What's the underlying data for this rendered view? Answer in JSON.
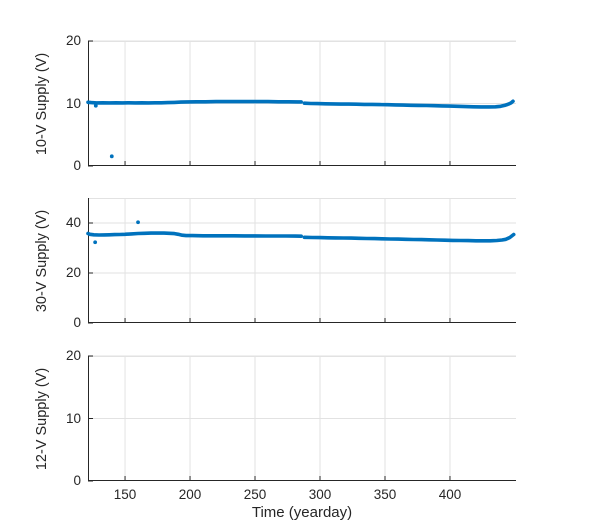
{
  "figure": {
    "xlabel": "Time (yearday)",
    "style": {
      "background": "#ffffff",
      "line_color": "#0072BD",
      "axis_color": "#262626",
      "grid_color": "#e2e2e2",
      "text_color": "#262626"
    }
  },
  "chart_data": [
    {
      "type": "scatter",
      "ylabel": "10-V Supply (V)",
      "xlabel": "",
      "xlim": [
        121.5,
        450.8
      ],
      "ylim": [
        0,
        20
      ],
      "xticks": [
        150,
        200,
        250,
        300,
        350,
        400
      ],
      "yticks": [
        0,
        10,
        20
      ],
      "xticklabels_visible": false,
      "grid": true,
      "legend": "none",
      "series": [
        {
          "name": "supply-10v-segment-1",
          "points": [
            [
              121.5,
              10.2
            ],
            [
              124,
              10.15
            ],
            [
              128,
              10.1
            ],
            [
              133,
              10.12
            ],
            [
              138,
              10.1
            ],
            [
              143,
              10.12
            ],
            [
              148,
              10.1
            ],
            [
              153,
              10.12
            ],
            [
              158,
              10.1
            ],
            [
              163,
              10.12
            ],
            [
              168,
              10.1
            ],
            [
              173,
              10.12
            ],
            [
              178,
              10.12
            ],
            [
              183,
              10.15
            ],
            [
              188,
              10.18
            ],
            [
              193,
              10.22
            ],
            [
              198,
              10.25
            ],
            [
              205,
              10.27
            ],
            [
              212,
              10.28
            ],
            [
              220,
              10.3
            ],
            [
              228,
              10.3
            ],
            [
              236,
              10.3
            ],
            [
              244,
              10.3
            ],
            [
              252,
              10.3
            ],
            [
              260,
              10.3
            ],
            [
              268,
              10.28
            ],
            [
              276,
              10.27
            ],
            [
              283,
              10.25
            ],
            [
              285.5,
              10.25
            ]
          ]
        },
        {
          "name": "supply-10v-segment-2",
          "points": [
            [
              288,
              10.05
            ],
            [
              293,
              10.0
            ],
            [
              298,
              9.98
            ],
            [
              304,
              9.95
            ],
            [
              310,
              9.93
            ],
            [
              316,
              9.9
            ],
            [
              322,
              9.9
            ],
            [
              328,
              9.88
            ],
            [
              334,
              9.85
            ],
            [
              340,
              9.85
            ],
            [
              346,
              9.82
            ],
            [
              352,
              9.8
            ],
            [
              358,
              9.78
            ],
            [
              364,
              9.75
            ],
            [
              370,
              9.72
            ],
            [
              376,
              9.7
            ],
            [
              382,
              9.68
            ],
            [
              388,
              9.65
            ],
            [
              394,
              9.62
            ],
            [
              400,
              9.58
            ],
            [
              406,
              9.55
            ],
            [
              412,
              9.5
            ],
            [
              418,
              9.47
            ],
            [
              424,
              9.45
            ],
            [
              430,
              9.45
            ],
            [
              435,
              9.47
            ],
            [
              439,
              9.55
            ],
            [
              442,
              9.7
            ],
            [
              445,
              9.9
            ],
            [
              447,
              10.1
            ],
            [
              448.5,
              10.35
            ]
          ]
        },
        {
          "name": "supply-10v-outliers",
          "marker_only": true,
          "points": [
            [
              127.5,
              9.65
            ],
            [
              139.8,
              1.55
            ]
          ]
        }
      ]
    },
    {
      "type": "scatter",
      "ylabel": "30-V Supply (V)",
      "xlabel": "",
      "xlim": [
        121.5,
        450.8
      ],
      "ylim": [
        0,
        50
      ],
      "xticks": [
        150,
        200,
        250,
        300,
        350,
        400
      ],
      "yticks": [
        0,
        20,
        40
      ],
      "xticklabels_visible": false,
      "grid": true,
      "legend": "none",
      "series": [
        {
          "name": "supply-30v-segment-1",
          "points": [
            [
              121.5,
              35.8
            ],
            [
              123,
              35.5
            ],
            [
              126,
              35.3
            ],
            [
              130,
              35.2
            ],
            [
              134,
              35.25
            ],
            [
              138,
              35.3
            ],
            [
              142,
              35.35
            ],
            [
              146,
              35.4
            ],
            [
              150,
              35.5
            ],
            [
              155,
              35.65
            ],
            [
              160,
              35.8
            ],
            [
              165,
              35.9
            ],
            [
              170,
              35.95
            ],
            [
              175,
              35.95
            ],
            [
              180,
              35.95
            ],
            [
              184,
              35.9
            ],
            [
              188,
              35.75
            ],
            [
              191,
              35.5
            ],
            [
              194,
              35.1
            ],
            [
              197,
              34.95
            ],
            [
              202,
              34.95
            ],
            [
              210,
              34.9
            ],
            [
              218,
              34.9
            ],
            [
              226,
              34.9
            ],
            [
              234,
              34.9
            ],
            [
              242,
              34.85
            ],
            [
              250,
              34.85
            ],
            [
              258,
              34.8
            ],
            [
              266,
              34.8
            ],
            [
              274,
              34.78
            ],
            [
              281,
              34.75
            ],
            [
              285.5,
              34.72
            ]
          ]
        },
        {
          "name": "supply-30v-segment-2",
          "points": [
            [
              288,
              34.3
            ],
            [
              294,
              34.2
            ],
            [
              300,
              34.15
            ],
            [
              306,
              34.1
            ],
            [
              312,
              34.05
            ],
            [
              318,
              34.0
            ],
            [
              324,
              33.95
            ],
            [
              330,
              33.88
            ],
            [
              336,
              33.8
            ],
            [
              342,
              33.75
            ],
            [
              348,
              33.68
            ],
            [
              354,
              33.6
            ],
            [
              360,
              33.55
            ],
            [
              366,
              33.48
            ],
            [
              372,
              33.4
            ],
            [
              378,
              33.35
            ],
            [
              384,
              33.28
            ],
            [
              390,
              33.2
            ],
            [
              396,
              33.12
            ],
            [
              402,
              33.05
            ],
            [
              408,
              33.0
            ],
            [
              414,
              32.95
            ],
            [
              420,
              32.9
            ],
            [
              426,
              32.88
            ],
            [
              431,
              32.9
            ],
            [
              436,
              33.0
            ],
            [
              440,
              33.2
            ],
            [
              443,
              33.5
            ],
            [
              446,
              34.2
            ],
            [
              448,
              35.0
            ],
            [
              449,
              35.4
            ]
          ]
        },
        {
          "name": "supply-30v-outliers",
          "marker_only": true,
          "points": [
            [
              127,
              32.3
            ],
            [
              160,
              40.3
            ]
          ]
        }
      ]
    },
    {
      "type": "scatter",
      "ylabel": "12-V Supply (V)",
      "xlabel": "Time (yearday)",
      "xlim": [
        121.5,
        450.8
      ],
      "ylim": [
        0,
        20
      ],
      "xticks": [
        150,
        200,
        250,
        300,
        350,
        400
      ],
      "yticks": [
        0,
        10,
        20
      ],
      "xticklabels_visible": true,
      "grid": true,
      "legend": "none",
      "series": []
    }
  ]
}
